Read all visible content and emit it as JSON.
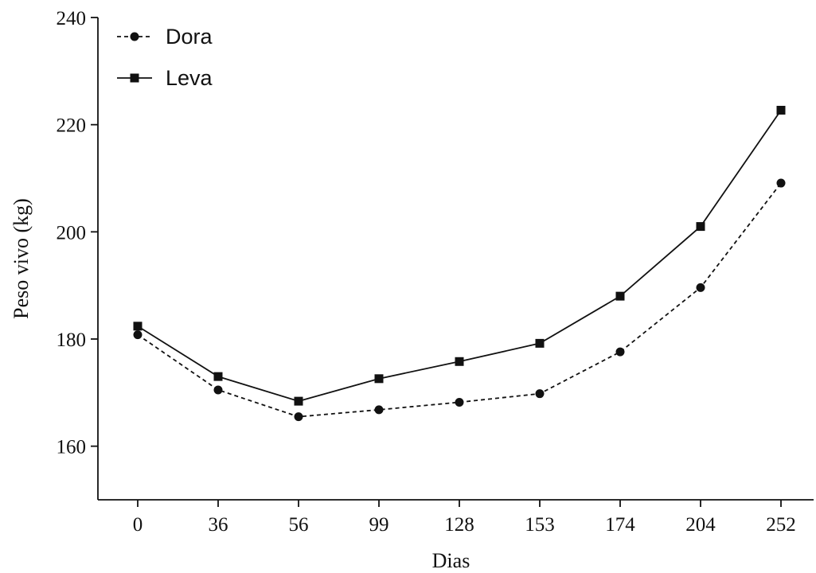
{
  "chart_data": {
    "type": "line",
    "categories": [
      "0",
      "36",
      "56",
      "99",
      "128",
      "153",
      "174",
      "204",
      "252"
    ],
    "series": [
      {
        "name": "Dora",
        "values": [
          180.8,
          170.5,
          165.5,
          166.8,
          168.2,
          169.8,
          177.6,
          189.6,
          209.1
        ],
        "line_style": "dashed",
        "marker": "circle",
        "color": "#111111"
      },
      {
        "name": "Leva",
        "values": [
          182.4,
          173.0,
          168.4,
          172.6,
          175.8,
          179.2,
          188.0,
          201.0,
          222.7
        ],
        "line_style": "solid",
        "marker": "square",
        "color": "#111111"
      }
    ],
    "xlabel": "Dias",
    "ylabel": "Peso vivo (kg)",
    "ylim": [
      150,
      240
    ],
    "yticks": [
      160,
      180,
      200,
      220,
      240
    ],
    "grid": false,
    "legend_position": "top-left"
  }
}
